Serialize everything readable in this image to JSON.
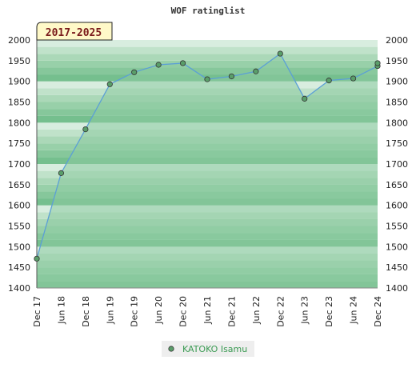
{
  "chart_data": {
    "type": "area",
    "title": "WOF ratinglist",
    "period_badge": "2017-2025",
    "ylim": [
      1400,
      2000
    ],
    "yticks": [
      1400,
      1450,
      1500,
      1550,
      1600,
      1650,
      1700,
      1750,
      1800,
      1850,
      1900,
      1950,
      2000
    ],
    "x_tick_labels": [
      "Dec 17",
      "Jun 18",
      "Dec 18",
      "Jun 19",
      "Dec 19",
      "Jun 20",
      "Dec 20",
      "Jun 21",
      "Dec 21",
      "Jun 22",
      "Dec 22",
      "Jun 23",
      "Dec 23",
      "Jun 24",
      "Dec 24"
    ],
    "grid": true,
    "legend_position": "bottom",
    "colors": {
      "line": "#5b9fd6",
      "area": "#8ccba0",
      "marker": "#5a9e6a"
    },
    "series": [
      {
        "name": "KATOKO Isamu",
        "points": [
          {
            "x": "Dec 17",
            "y": 1471
          },
          {
            "x": "Jun 18",
            "y": 1678
          },
          {
            "x": "Dec 18",
            "y": 1784
          },
          {
            "x": "Jun 19",
            "y": 1893
          },
          {
            "x": "Dec 19",
            "y": 1922
          },
          {
            "x": "Jun 20",
            "y": 1940
          },
          {
            "x": "Dec 20",
            "y": 1944
          },
          {
            "x": "Jun 21",
            "y": 1905
          },
          {
            "x": "Dec 21",
            "y": 1912
          },
          {
            "x": "Jun 22",
            "y": 1924
          },
          {
            "x": "Dec 22",
            "y": 1967
          },
          {
            "x": "Jun 23",
            "y": 1858
          },
          {
            "x": "Dec 23",
            "y": 1902
          },
          {
            "x": "Jun 24",
            "y": 1907
          },
          {
            "x": "Dec 24",
            "y": 1937
          },
          {
            "x": "Jan 25",
            "y": 1944
          }
        ]
      }
    ]
  }
}
